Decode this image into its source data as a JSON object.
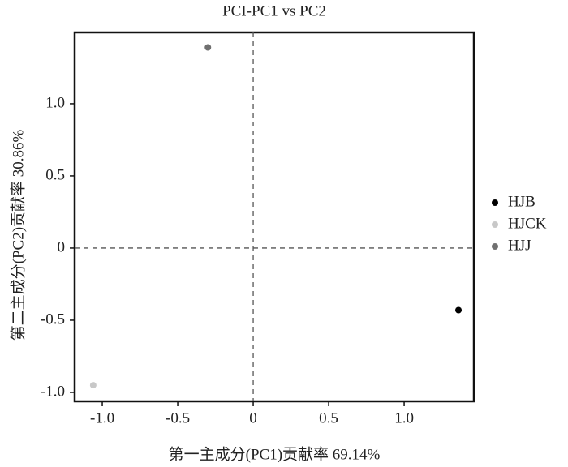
{
  "chart_data": {
    "type": "scatter",
    "title": "PCI-PC1 vs PC2",
    "x_label": "第一主成分(PC1)贡献率 69.14%",
    "y_label": "第二主成分(PC2)贡献率 30.86%",
    "series": [
      {
        "name": "HJB",
        "color": "#000000",
        "x": [
          1.36
        ],
        "y": [
          -0.43
        ]
      },
      {
        "name": "HJCK",
        "color": "#c8c8c8",
        "x": [
          -1.06
        ],
        "y": [
          -0.95
        ]
      },
      {
        "name": "HJJ",
        "color": "#707070",
        "x": [
          -0.3
        ],
        "y": [
          1.39
        ]
      }
    ],
    "xlim": [
      -1.183,
      1.462
    ],
    "ylim": [
      -1.062,
      1.494
    ],
    "xticks": [
      {
        "value": -1,
        "label": "-1.0"
      },
      -0.5,
      0,
      0.5,
      {
        "value": 1,
        "label": "1.0"
      }
    ],
    "yticks": [
      {
        "value": -1,
        "label": "-1.0"
      },
      -0.5,
      0,
      0.5,
      {
        "value": 1,
        "label": "1.0"
      }
    ],
    "zero_lines": true,
    "legend": "right"
  }
}
